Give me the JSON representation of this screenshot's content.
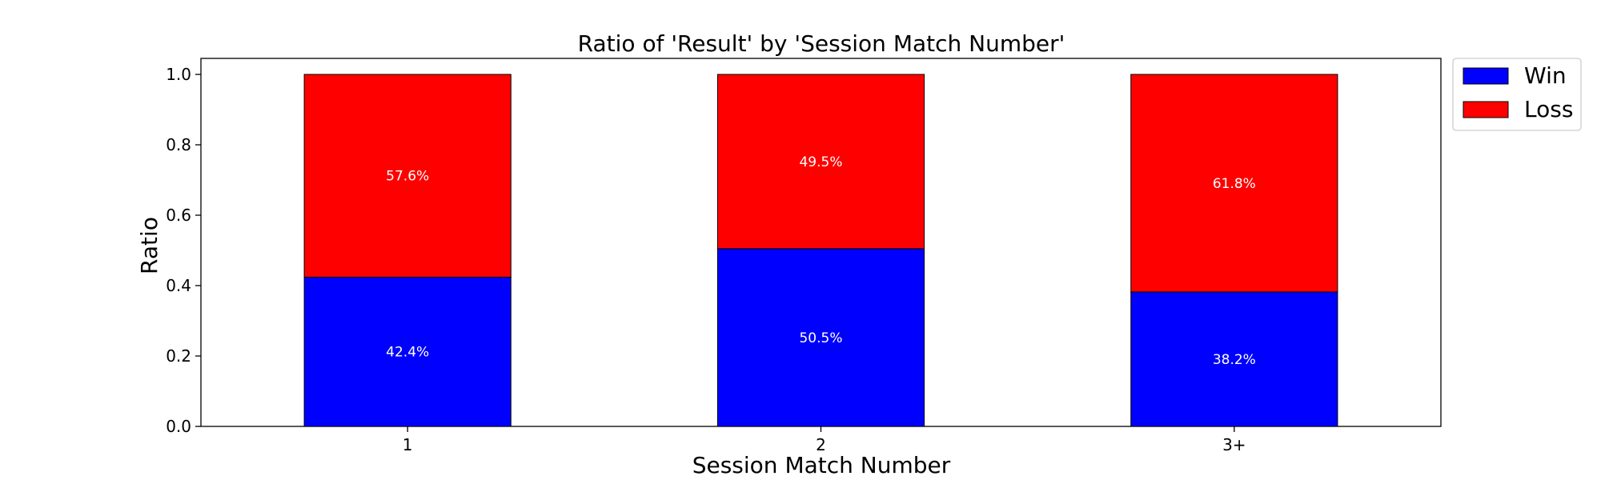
{
  "chart_data": {
    "type": "bar",
    "stacked": true,
    "title": "Ratio of 'Result' by 'Session Match Number'",
    "xlabel": "Session Match Number",
    "ylabel": "Ratio",
    "categories": [
      "1",
      "2",
      "3+"
    ],
    "ylim": [
      0,
      1.05
    ],
    "yticks": [
      0.0,
      0.2,
      0.4,
      0.6,
      0.8,
      1.0
    ],
    "ytick_labels": [
      "0.0",
      "0.2",
      "0.4",
      "0.6",
      "0.8",
      "1.0"
    ],
    "grid": false,
    "legend_position": "outside top-right",
    "series": [
      {
        "name": "Win",
        "color": "#0000ff",
        "values": [
          0.424,
          0.505,
          0.382
        ],
        "labels": [
          "42.4%",
          "50.5%",
          "38.2%"
        ]
      },
      {
        "name": "Loss",
        "color": "#ff0000",
        "values": [
          0.576,
          0.495,
          0.618
        ],
        "labels": [
          "57.6%",
          "49.5%",
          "61.8%"
        ]
      }
    ]
  }
}
